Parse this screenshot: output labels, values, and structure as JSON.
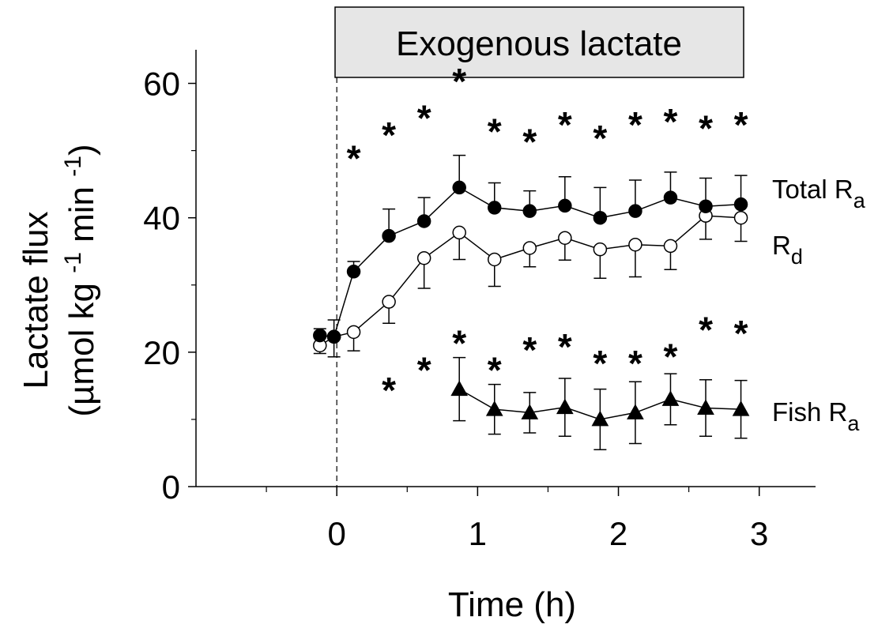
{
  "chart_data": {
    "type": "line",
    "xlabel": "Time (h)",
    "ylabel_line1": "Lactate flux",
    "ylabel_line2_prefix": "(µmol kg ",
    "ylabel_line2_sup1": "-1",
    "ylabel_line2_mid": " min ",
    "ylabel_line2_sup2": "-1",
    "ylabel_line2_suffix": ")",
    "xlim": [
      -1,
      3.4
    ],
    "ylim": [
      0,
      65
    ],
    "x_ticks": [
      0,
      1,
      2,
      3
    ],
    "x_tick_labels": [
      "0",
      "1",
      "2",
      "3"
    ],
    "x_minor_ticks": [
      -0.5,
      0.5,
      1.5,
      2.5
    ],
    "y_ticks": [
      0,
      20,
      40,
      60
    ],
    "y_tick_labels": [
      "0",
      "20",
      "40",
      "60"
    ],
    "y_minor_ticks": [
      10,
      30,
      50
    ],
    "infusion_start": 0,
    "infusion_label": "Exogenous lactate",
    "significance_marker": "*",
    "series": [
      {
        "name": "Total R",
        "subscript": "a",
        "marker": "filled-circle",
        "x": [
          -0.12,
          -0.02,
          0.12,
          0.37,
          0.62,
          0.87,
          1.12,
          1.37,
          1.62,
          1.87,
          2.12,
          2.37,
          2.62,
          2.87
        ],
        "y": [
          22.5,
          22.3,
          32.0,
          37.3,
          39.5,
          44.5,
          41.5,
          41.0,
          41.8,
          40.0,
          41.0,
          43.0,
          41.7,
          42.0
        ],
        "err": [
          1.0,
          2.5,
          1.5,
          4.0,
          3.5,
          4.8,
          3.7,
          3.0,
          4.3,
          4.5,
          4.6,
          3.8,
          4.2,
          4.3
        ],
        "err_dir": "up",
        "sig_x": [
          0.12,
          0.37,
          0.62,
          0.87,
          1.12,
          1.37,
          1.62,
          1.87,
          2.12,
          2.37,
          2.62,
          2.87
        ],
        "sig_y": [
          50.0,
          53.5,
          56.0,
          61.5,
          54.0,
          52.5,
          55.0,
          53.0,
          55.0,
          55.5,
          54.5,
          55.0
        ]
      },
      {
        "name": "R",
        "subscript": "d",
        "marker": "open-circle",
        "x": [
          -0.12,
          -0.02,
          0.12,
          0.37,
          0.62,
          0.87,
          1.12,
          1.37,
          1.62,
          1.87,
          2.12,
          2.37,
          2.62,
          2.87
        ],
        "y": [
          21.0,
          22.3,
          23.0,
          27.5,
          34.0,
          37.8,
          33.8,
          35.5,
          37.0,
          35.3,
          36.0,
          35.8,
          40.3,
          40.0
        ],
        "err": [
          1.2,
          3.0,
          2.8,
          3.2,
          4.5,
          4.0,
          4.0,
          2.8,
          3.3,
          4.3,
          4.8,
          3.5,
          3.5,
          3.5
        ],
        "err_dir": "down",
        "sig_x": [
          0.37,
          0.62,
          0.87,
          1.12,
          1.37,
          1.62,
          1.87,
          2.12,
          2.37,
          2.62,
          2.87
        ],
        "sig_y": [
          15.5,
          18.5,
          22.5,
          18.5,
          21.5,
          22.0,
          19.5,
          19.5,
          20.5,
          24.5,
          24.0
        ]
      },
      {
        "name": "Fish R",
        "subscript": "a",
        "marker": "filled-triangle",
        "x": [
          0.87,
          1.12,
          1.37,
          1.62,
          1.87,
          2.12,
          2.37,
          2.62,
          2.87
        ],
        "y": [
          14.5,
          11.5,
          11.0,
          11.8,
          10.0,
          11.0,
          13.0,
          11.7,
          11.5
        ],
        "err": [
          4.7,
          3.7,
          3.0,
          4.3,
          4.5,
          4.6,
          3.8,
          4.2,
          4.3
        ],
        "err_dir": "both"
      }
    ]
  }
}
